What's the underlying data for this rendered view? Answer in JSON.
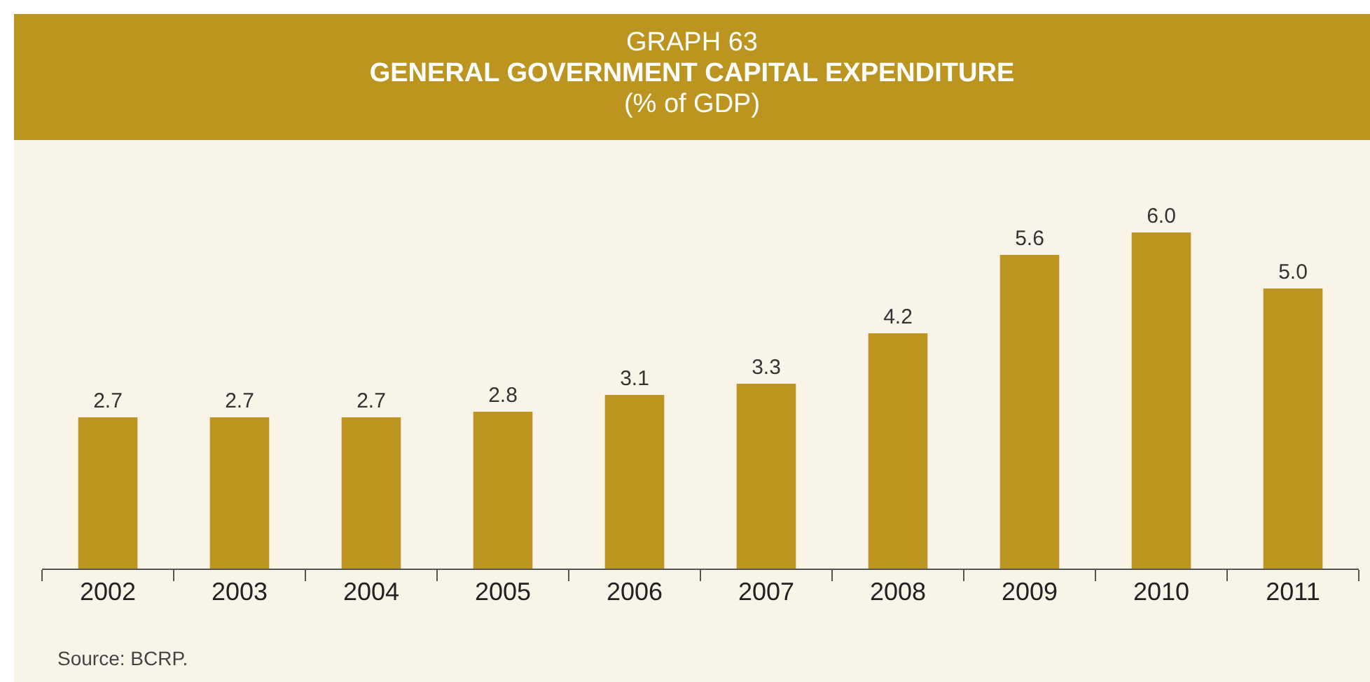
{
  "chart_data": {
    "type": "bar",
    "title": "GENERAL GOVERNMENT CAPITAL EXPENDITURE",
    "subtitle": "(% of GDP)",
    "annotations": [
      "GRAPH 63",
      "Source: BCRP."
    ],
    "categories": [
      "2002",
      "2003",
      "2004",
      "2005",
      "2006",
      "2007",
      "2008",
      "2009",
      "2010",
      "2011"
    ],
    "values": [
      2.7,
      2.7,
      2.7,
      2.8,
      3.1,
      3.3,
      4.2,
      5.6,
      6.0,
      5.0
    ],
    "value_labels": [
      "2.7",
      "2.7",
      "2.7",
      "2.8",
      "3.1",
      "3.3",
      "4.2",
      "5.6",
      "6.0",
      "5.0"
    ],
    "color": "#bd9521",
    "grid": false,
    "legend": false
  }
}
